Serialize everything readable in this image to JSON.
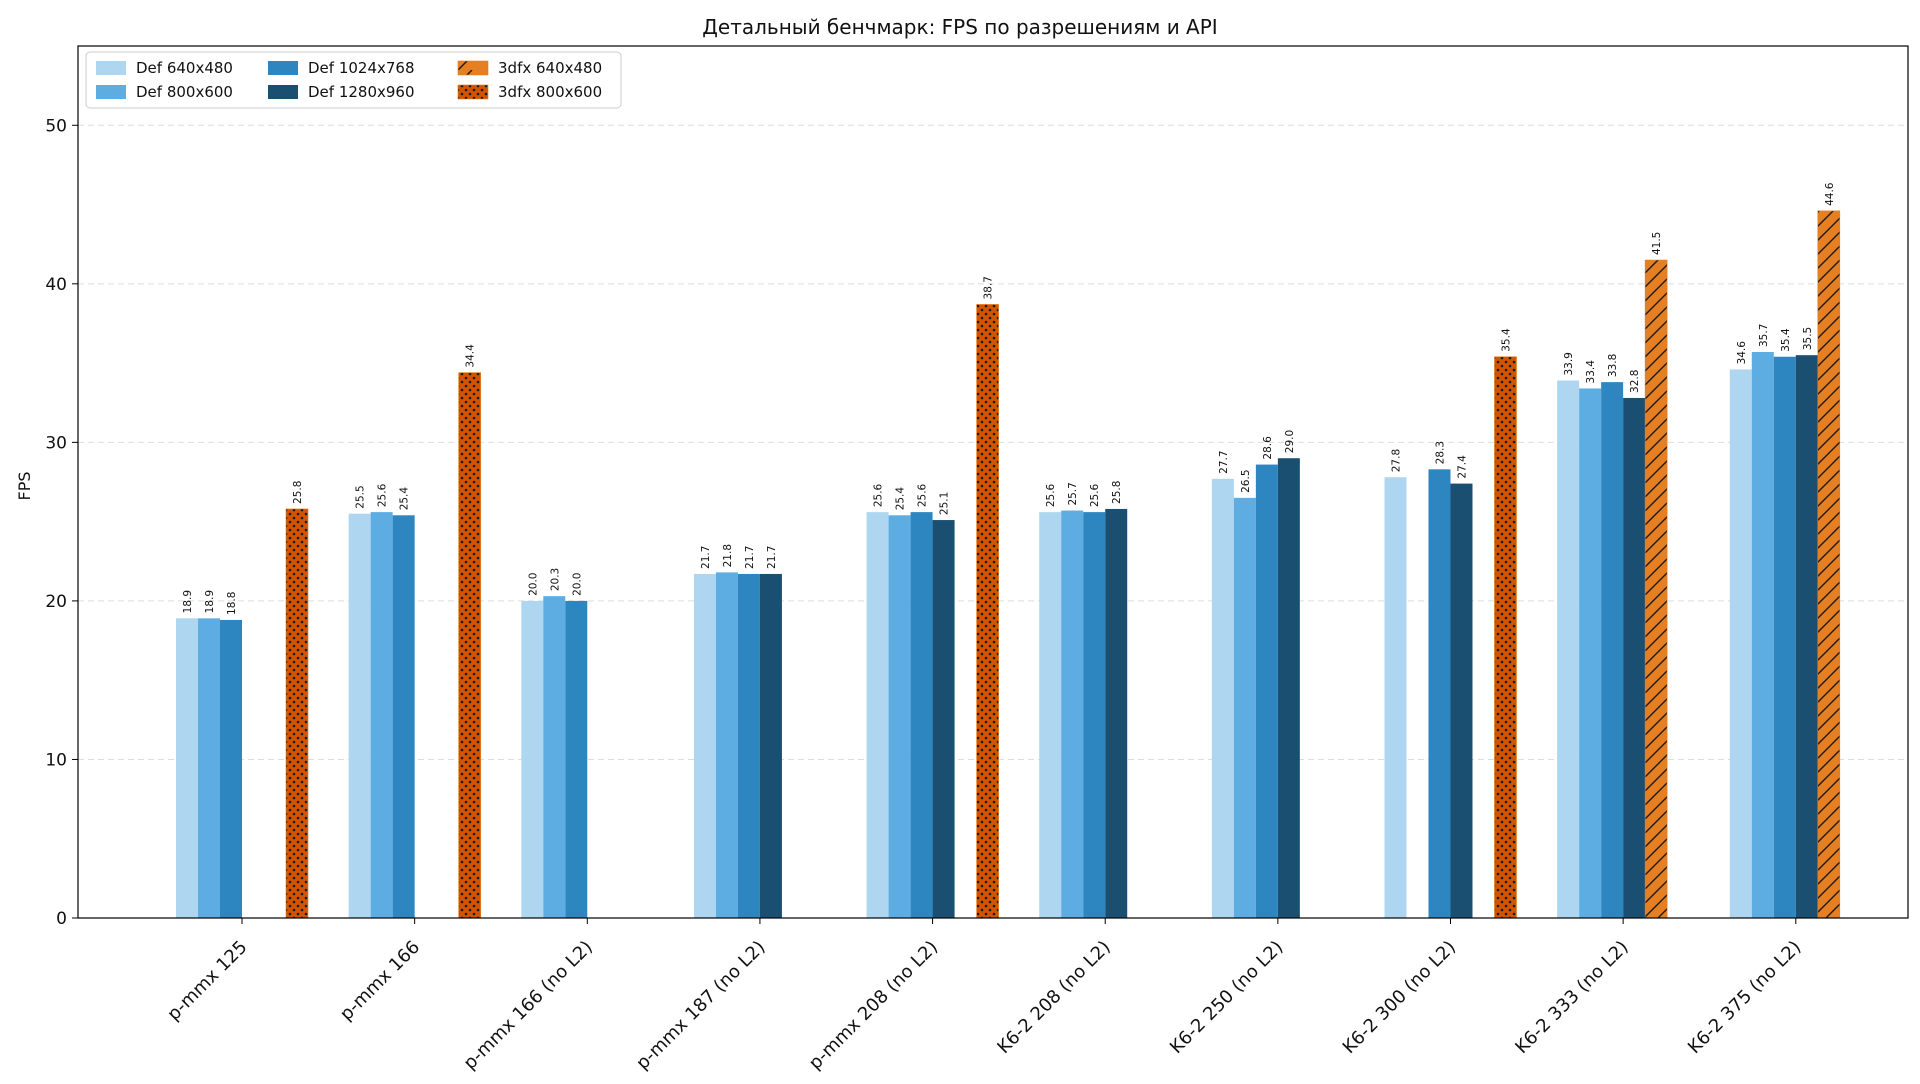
{
  "chart_data": {
    "type": "bar",
    "title": "Детальный бенчмарк: FPS по разрешениям и API",
    "xlabel": "",
    "ylabel": "FPS",
    "ylim": [
      0,
      55
    ],
    "yticks": [
      0,
      10,
      20,
      30,
      40,
      50
    ],
    "grid": true,
    "legend_position": "top-left",
    "categories": [
      "p-mmx 125",
      "p-mmx 166",
      "p-mmx 166 (no L2)",
      "p-mmx 187 (no L2)",
      "p-mmx 208 (no L2)",
      "K6-2 208 (no L2)",
      "K6-2 250 (no L2)",
      "K6-2 300 (no L2)",
      "K6-2 333 (no L2)",
      "K6-2 375 (no L2)"
    ],
    "series": [
      {
        "name": "Def 640x480",
        "color": "#aed6f1",
        "pattern": "solid",
        "values": [
          18.9,
          25.5,
          20.0,
          21.7,
          25.6,
          25.6,
          27.7,
          27.8,
          33.9,
          34.6
        ]
      },
      {
        "name": "Def 800x600",
        "color": "#5dade2",
        "pattern": "solid",
        "values": [
          18.9,
          25.6,
          20.3,
          21.8,
          25.4,
          25.7,
          26.5,
          null,
          33.4,
          35.7
        ]
      },
      {
        "name": "Def 1024x768",
        "color": "#2e86c1",
        "pattern": "solid",
        "values": [
          18.8,
          25.4,
          20.0,
          21.7,
          25.6,
          25.6,
          28.6,
          28.3,
          33.8,
          35.4
        ]
      },
      {
        "name": "Def 1280x960",
        "color": "#1b4f72",
        "pattern": "solid",
        "values": [
          null,
          null,
          null,
          21.7,
          25.1,
          25.8,
          29.0,
          27.4,
          32.8,
          35.5
        ]
      },
      {
        "name": "3dfx 640x480",
        "color": "#e67e22",
        "pattern": "hatch",
        "values": [
          null,
          null,
          null,
          null,
          null,
          null,
          null,
          null,
          41.5,
          44.6
        ]
      },
      {
        "name": "3dfx 800x600",
        "color": "#d35400",
        "pattern": "dots",
        "values": [
          25.8,
          34.4,
          null,
          null,
          38.7,
          null,
          null,
          35.4,
          null,
          null
        ]
      }
    ]
  }
}
